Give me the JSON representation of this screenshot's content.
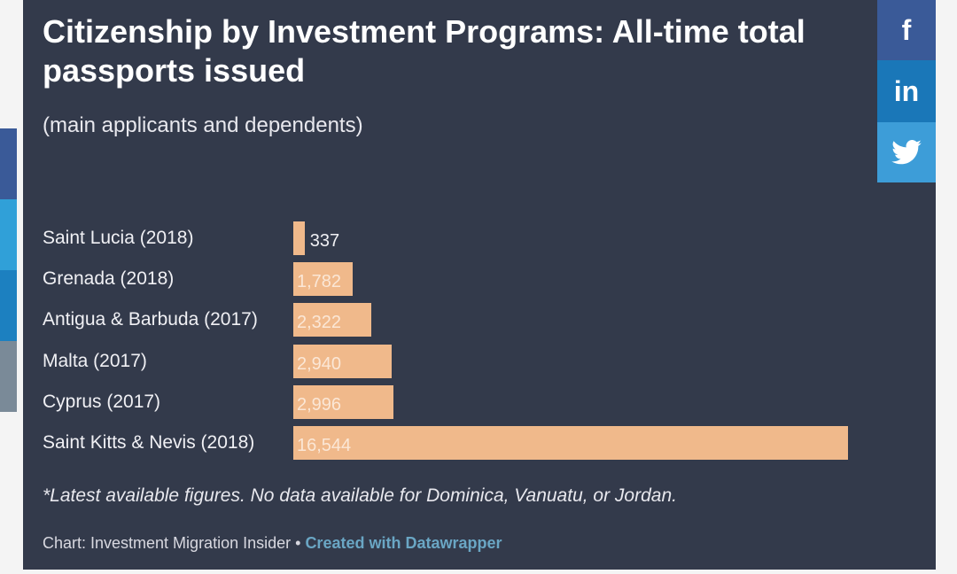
{
  "social": {
    "facebook": "f",
    "linkedin": "in",
    "twitter": "twitter-bird"
  },
  "colors": {
    "bar": "#f0b98b",
    "background": "#333a4b",
    "facebook": "#3a5a98",
    "linkedin": "#1a77b8",
    "twitter": "#3d9dd8"
  },
  "chart_data": {
    "type": "bar",
    "orientation": "horizontal",
    "title": "Citizenship by Investment Programs: All-time total passports issued",
    "subtitle": "(main applicants and dependents)",
    "categories": [
      "Saint Lucia (2018)",
      "Grenada (2018)",
      "Antigua & Barbuda (2017)",
      "Malta (2017)",
      "Cyprus (2017)",
      "Saint Kitts & Nevis (2018)"
    ],
    "values": [
      337,
      1782,
      2322,
      2940,
      2996,
      16544
    ],
    "value_labels": [
      "337",
      "1,782",
      "2,322",
      "2,940",
      "2,996",
      "16,544"
    ],
    "xlim": [
      0,
      16544
    ],
    "grid": false,
    "note": "*Latest available figures. No data available for Dominica, Vanuatu, or Jordan.",
    "source": "Chart: Investment Migration Insider •",
    "credit": "Created with Datawrapper"
  }
}
